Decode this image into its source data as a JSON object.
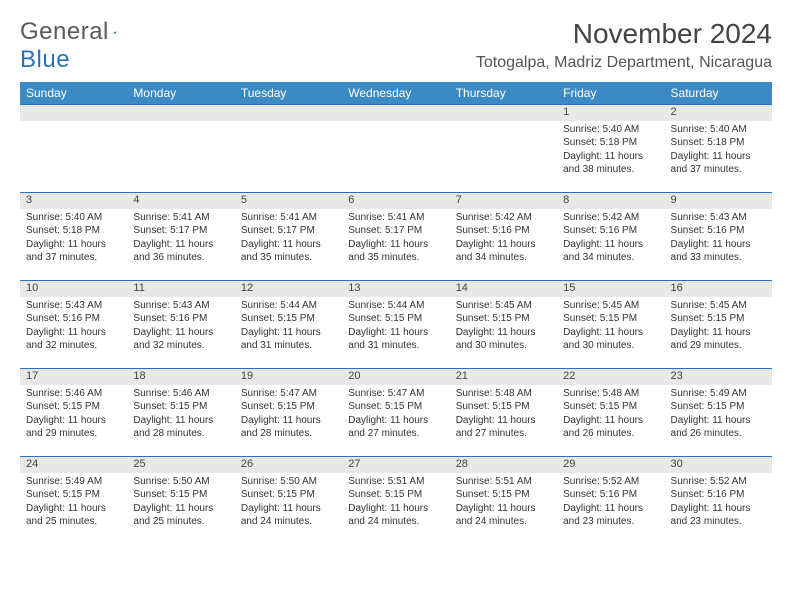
{
  "logo": {
    "word1": "General",
    "word2": "Blue"
  },
  "title": "November 2024",
  "location": "Totogalpa, Madriz Department, Nicaragua",
  "colors": {
    "header_bg": "#3b8ac4",
    "header_text": "#ffffff",
    "daynum_bg": "#e8e8e8",
    "row_border": "#2a72b5",
    "body_text": "#333333",
    "logo_gray": "#5a5a5a",
    "logo_blue": "#2a72b5"
  },
  "weekdays": [
    "Sunday",
    "Monday",
    "Tuesday",
    "Wednesday",
    "Thursday",
    "Friday",
    "Saturday"
  ],
  "weeks": [
    [
      null,
      null,
      null,
      null,
      null,
      {
        "n": "1",
        "sr": "Sunrise: 5:40 AM",
        "ss": "Sunset: 5:18 PM",
        "d1": "Daylight: 11 hours",
        "d2": "and 38 minutes."
      },
      {
        "n": "2",
        "sr": "Sunrise: 5:40 AM",
        "ss": "Sunset: 5:18 PM",
        "d1": "Daylight: 11 hours",
        "d2": "and 37 minutes."
      }
    ],
    [
      {
        "n": "3",
        "sr": "Sunrise: 5:40 AM",
        "ss": "Sunset: 5:18 PM",
        "d1": "Daylight: 11 hours",
        "d2": "and 37 minutes."
      },
      {
        "n": "4",
        "sr": "Sunrise: 5:41 AM",
        "ss": "Sunset: 5:17 PM",
        "d1": "Daylight: 11 hours",
        "d2": "and 36 minutes."
      },
      {
        "n": "5",
        "sr": "Sunrise: 5:41 AM",
        "ss": "Sunset: 5:17 PM",
        "d1": "Daylight: 11 hours",
        "d2": "and 35 minutes."
      },
      {
        "n": "6",
        "sr": "Sunrise: 5:41 AM",
        "ss": "Sunset: 5:17 PM",
        "d1": "Daylight: 11 hours",
        "d2": "and 35 minutes."
      },
      {
        "n": "7",
        "sr": "Sunrise: 5:42 AM",
        "ss": "Sunset: 5:16 PM",
        "d1": "Daylight: 11 hours",
        "d2": "and 34 minutes."
      },
      {
        "n": "8",
        "sr": "Sunrise: 5:42 AM",
        "ss": "Sunset: 5:16 PM",
        "d1": "Daylight: 11 hours",
        "d2": "and 34 minutes."
      },
      {
        "n": "9",
        "sr": "Sunrise: 5:43 AM",
        "ss": "Sunset: 5:16 PM",
        "d1": "Daylight: 11 hours",
        "d2": "and 33 minutes."
      }
    ],
    [
      {
        "n": "10",
        "sr": "Sunrise: 5:43 AM",
        "ss": "Sunset: 5:16 PM",
        "d1": "Daylight: 11 hours",
        "d2": "and 32 minutes."
      },
      {
        "n": "11",
        "sr": "Sunrise: 5:43 AM",
        "ss": "Sunset: 5:16 PM",
        "d1": "Daylight: 11 hours",
        "d2": "and 32 minutes."
      },
      {
        "n": "12",
        "sr": "Sunrise: 5:44 AM",
        "ss": "Sunset: 5:15 PM",
        "d1": "Daylight: 11 hours",
        "d2": "and 31 minutes."
      },
      {
        "n": "13",
        "sr": "Sunrise: 5:44 AM",
        "ss": "Sunset: 5:15 PM",
        "d1": "Daylight: 11 hours",
        "d2": "and 31 minutes."
      },
      {
        "n": "14",
        "sr": "Sunrise: 5:45 AM",
        "ss": "Sunset: 5:15 PM",
        "d1": "Daylight: 11 hours",
        "d2": "and 30 minutes."
      },
      {
        "n": "15",
        "sr": "Sunrise: 5:45 AM",
        "ss": "Sunset: 5:15 PM",
        "d1": "Daylight: 11 hours",
        "d2": "and 30 minutes."
      },
      {
        "n": "16",
        "sr": "Sunrise: 5:45 AM",
        "ss": "Sunset: 5:15 PM",
        "d1": "Daylight: 11 hours",
        "d2": "and 29 minutes."
      }
    ],
    [
      {
        "n": "17",
        "sr": "Sunrise: 5:46 AM",
        "ss": "Sunset: 5:15 PM",
        "d1": "Daylight: 11 hours",
        "d2": "and 29 minutes."
      },
      {
        "n": "18",
        "sr": "Sunrise: 5:46 AM",
        "ss": "Sunset: 5:15 PM",
        "d1": "Daylight: 11 hours",
        "d2": "and 28 minutes."
      },
      {
        "n": "19",
        "sr": "Sunrise: 5:47 AM",
        "ss": "Sunset: 5:15 PM",
        "d1": "Daylight: 11 hours",
        "d2": "and 28 minutes."
      },
      {
        "n": "20",
        "sr": "Sunrise: 5:47 AM",
        "ss": "Sunset: 5:15 PM",
        "d1": "Daylight: 11 hours",
        "d2": "and 27 minutes."
      },
      {
        "n": "21",
        "sr": "Sunrise: 5:48 AM",
        "ss": "Sunset: 5:15 PM",
        "d1": "Daylight: 11 hours",
        "d2": "and 27 minutes."
      },
      {
        "n": "22",
        "sr": "Sunrise: 5:48 AM",
        "ss": "Sunset: 5:15 PM",
        "d1": "Daylight: 11 hours",
        "d2": "and 26 minutes."
      },
      {
        "n": "23",
        "sr": "Sunrise: 5:49 AM",
        "ss": "Sunset: 5:15 PM",
        "d1": "Daylight: 11 hours",
        "d2": "and 26 minutes."
      }
    ],
    [
      {
        "n": "24",
        "sr": "Sunrise: 5:49 AM",
        "ss": "Sunset: 5:15 PM",
        "d1": "Daylight: 11 hours",
        "d2": "and 25 minutes."
      },
      {
        "n": "25",
        "sr": "Sunrise: 5:50 AM",
        "ss": "Sunset: 5:15 PM",
        "d1": "Daylight: 11 hours",
        "d2": "and 25 minutes."
      },
      {
        "n": "26",
        "sr": "Sunrise: 5:50 AM",
        "ss": "Sunset: 5:15 PM",
        "d1": "Daylight: 11 hours",
        "d2": "and 24 minutes."
      },
      {
        "n": "27",
        "sr": "Sunrise: 5:51 AM",
        "ss": "Sunset: 5:15 PM",
        "d1": "Daylight: 11 hours",
        "d2": "and 24 minutes."
      },
      {
        "n": "28",
        "sr": "Sunrise: 5:51 AM",
        "ss": "Sunset: 5:15 PM",
        "d1": "Daylight: 11 hours",
        "d2": "and 24 minutes."
      },
      {
        "n": "29",
        "sr": "Sunrise: 5:52 AM",
        "ss": "Sunset: 5:16 PM",
        "d1": "Daylight: 11 hours",
        "d2": "and 23 minutes."
      },
      {
        "n": "30",
        "sr": "Sunrise: 5:52 AM",
        "ss": "Sunset: 5:16 PM",
        "d1": "Daylight: 11 hours",
        "d2": "and 23 minutes."
      }
    ]
  ]
}
